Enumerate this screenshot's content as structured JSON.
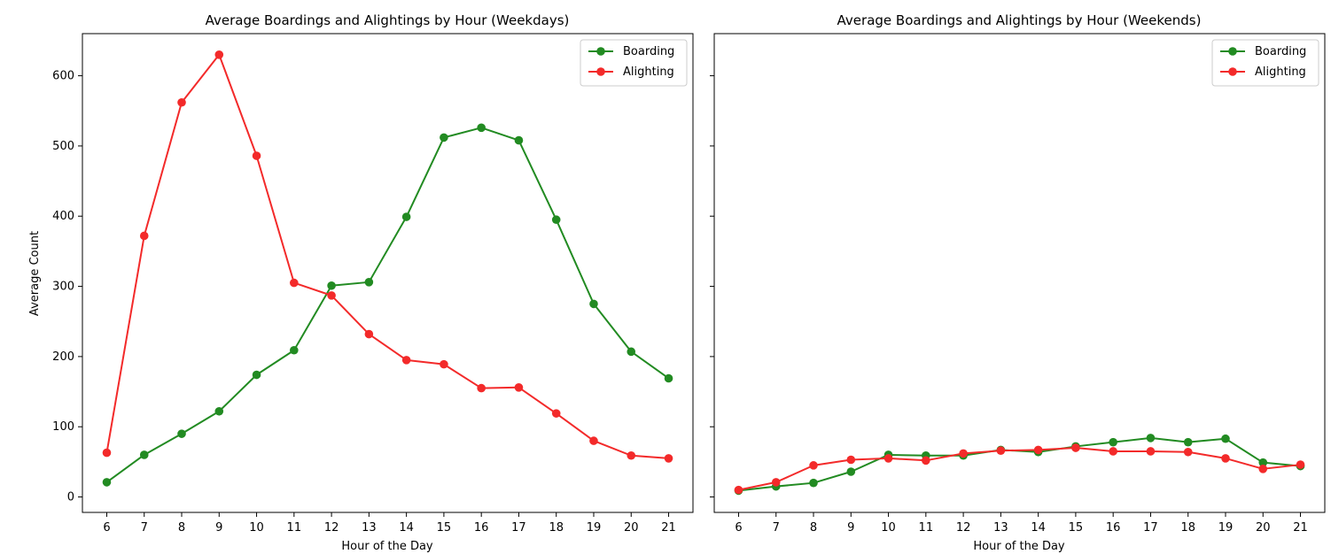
{
  "colors": {
    "boarding": "#228B22",
    "alighting": "#F32A2A",
    "axis": "#000000",
    "legend_border": "#CCCCCC"
  },
  "chart_data": [
    {
      "type": "line",
      "title": "Average Boardings and Alightings by Hour (Weekdays)",
      "xlabel": "Hour of the Day",
      "ylabel": "Average Count",
      "x": [
        6,
        7,
        8,
        9,
        10,
        11,
        12,
        13,
        14,
        15,
        16,
        17,
        18,
        19,
        20,
        21
      ],
      "xticks": [
        "6",
        "7",
        "8",
        "9",
        "10",
        "11",
        "12",
        "13",
        "14",
        "15",
        "16",
        "17",
        "18",
        "19",
        "20",
        "21"
      ],
      "yticks": [
        "0",
        "100",
        "200",
        "300",
        "400",
        "500",
        "600"
      ],
      "ylim": [
        -22,
        660
      ],
      "xlim": [
        5.35,
        21.65
      ],
      "grid": false,
      "legend": "upper right",
      "series": [
        {
          "name": "Boarding",
          "color": "#228B22",
          "marker": "circle",
          "values": [
            21,
            60,
            90,
            122,
            174,
            209,
            301,
            306,
            399,
            512,
            526,
            508,
            395,
            275,
            207,
            169
          ]
        },
        {
          "name": "Alighting",
          "color": "#F32A2A",
          "marker": "circle",
          "values": [
            63,
            372,
            562,
            630,
            486,
            305,
            287,
            232,
            195,
            189,
            155,
            156,
            119,
            80,
            59,
            55
          ]
        }
      ]
    },
    {
      "type": "line",
      "title": "Average Boardings and Alightings by Hour (Weekends)",
      "xlabel": "Hour of the Day",
      "ylabel": "",
      "x": [
        6,
        7,
        8,
        9,
        10,
        11,
        12,
        13,
        14,
        15,
        16,
        17,
        18,
        19,
        20,
        21
      ],
      "xticks": [
        "6",
        "7",
        "8",
        "9",
        "10",
        "11",
        "12",
        "13",
        "14",
        "15",
        "16",
        "17",
        "18",
        "19",
        "20",
        "21"
      ],
      "yticks": [],
      "ylim": [
        -22,
        660
      ],
      "xlim": [
        5.35,
        21.65
      ],
      "grid": false,
      "legend": "upper right",
      "series": [
        {
          "name": "Boarding",
          "color": "#228B22",
          "marker": "circle",
          "values": [
            9,
            15,
            20,
            36,
            60,
            59,
            59,
            67,
            64,
            72,
            78,
            84,
            78,
            83,
            49,
            44
          ]
        },
        {
          "name": "Alighting",
          "color": "#F32A2A",
          "marker": "circle",
          "values": [
            10,
            21,
            45,
            53,
            55,
            52,
            62,
            66,
            67,
            70,
            65,
            65,
            64,
            55,
            40,
            46
          ]
        }
      ]
    }
  ]
}
